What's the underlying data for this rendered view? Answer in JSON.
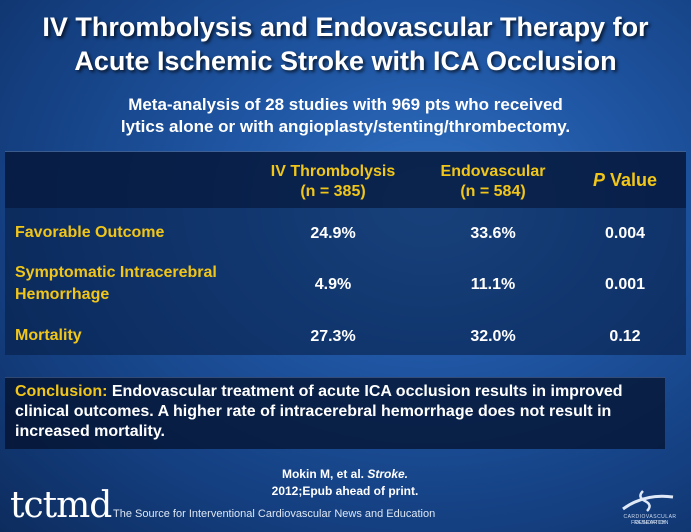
{
  "slide": {
    "title_line1": "IV Thrombolysis and Endovascular Therapy for",
    "title_line2": "Acute Ischemic Stroke with ICA Occlusion",
    "subtitle_line1": "Meta-analysis of 28 studies with 969 pts who received",
    "subtitle_line2": "lytics alone or with angioplasty/stenting/thrombectomy."
  },
  "table": {
    "headers": {
      "col1_line1": "IV Thrombolysis",
      "col1_line2": "(n = 385)",
      "col2_line1": "Endovascular",
      "col2_line2": "(n = 584)",
      "col3_italic": "P",
      "col3_rest": " Value"
    },
    "rows": [
      {
        "label_line1": "Favorable Outcome",
        "label_line2": "",
        "iv": "24.9%",
        "endo": "33.6%",
        "p": "0.004"
      },
      {
        "label_line1": "Symptomatic Intracerebral",
        "label_line2": "Hemorrhage",
        "iv": "4.9%",
        "endo": "11.1%",
        "p": "0.001"
      },
      {
        "label_line1": "Mortality",
        "label_line2": "",
        "iv": "27.3%",
        "endo": "32.0%",
        "p": "0.12"
      }
    ]
  },
  "conclusion": {
    "lead": "Conclusion:",
    "text": " Endovascular treatment of acute ICA occlusion results in improved clinical outcomes. A higher rate of intracerebral hemorrhage does not result in increased mortality."
  },
  "citation": {
    "authors": "Mokin M, et al. ",
    "journal": "Stroke.",
    "line2": "2012;Epub ahead of print."
  },
  "footer": {
    "logo": "tctmd",
    "tagline": "The Source for Interventional Cardiovascular News and Education",
    "foundation_line1": "CARDIOVASCULAR RESEARCH",
    "foundation_line2": "FOUNDATION"
  },
  "colors": {
    "accent_yellow": "#f2c618",
    "background_blue": "#1f55a2"
  }
}
